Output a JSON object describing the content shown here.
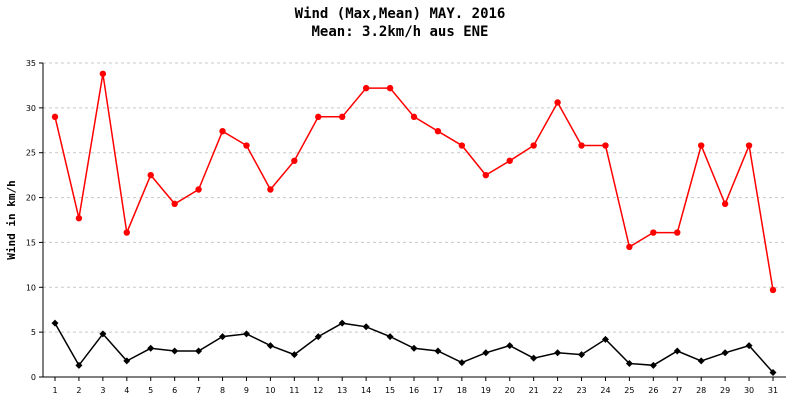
{
  "chart_data": {
    "type": "line",
    "title": "Wind (Max,Mean) MAY. 2016",
    "subtitle": "Mean: 3.2km/h aus ENE",
    "xlabel": "",
    "ylabel": "Wind in km/h",
    "categories": [
      "1",
      "2",
      "3",
      "4",
      "5",
      "6",
      "7",
      "8",
      "9",
      "10",
      "11",
      "12",
      "13",
      "14",
      "15",
      "16",
      "17",
      "18",
      "19",
      "20",
      "21",
      "22",
      "23",
      "24",
      "25",
      "26",
      "27",
      "28",
      "29",
      "30",
      "31"
    ],
    "ylim": [
      0,
      35
    ],
    "yticks": [
      0,
      5,
      10,
      15,
      20,
      25,
      30,
      35
    ],
    "grid": true,
    "series": [
      {
        "color": "#ff0000",
        "marker": "circle",
        "values": [
          29.0,
          17.7,
          33.8,
          16.1,
          22.5,
          19.3,
          20.9,
          27.4,
          25.8,
          20.9,
          24.1,
          29.0,
          29.0,
          32.2,
          32.2,
          29.0,
          27.4,
          25.8,
          22.5,
          24.1,
          25.8,
          30.6,
          25.8,
          25.8,
          14.5,
          16.1,
          16.1,
          25.8,
          19.3,
          25.8,
          9.7
        ]
      },
      {
        "color": "#000000",
        "marker": "diamond",
        "values": [
          6.0,
          1.3,
          4.8,
          1.8,
          3.2,
          2.9,
          2.9,
          4.5,
          4.8,
          3.5,
          2.5,
          4.5,
          6.0,
          5.6,
          4.5,
          3.2,
          2.9,
          1.6,
          2.7,
          3.5,
          2.1,
          2.7,
          2.5,
          4.2,
          1.5,
          1.3,
          2.9,
          1.8,
          2.7,
          3.5,
          0.5
        ]
      }
    ]
  }
}
